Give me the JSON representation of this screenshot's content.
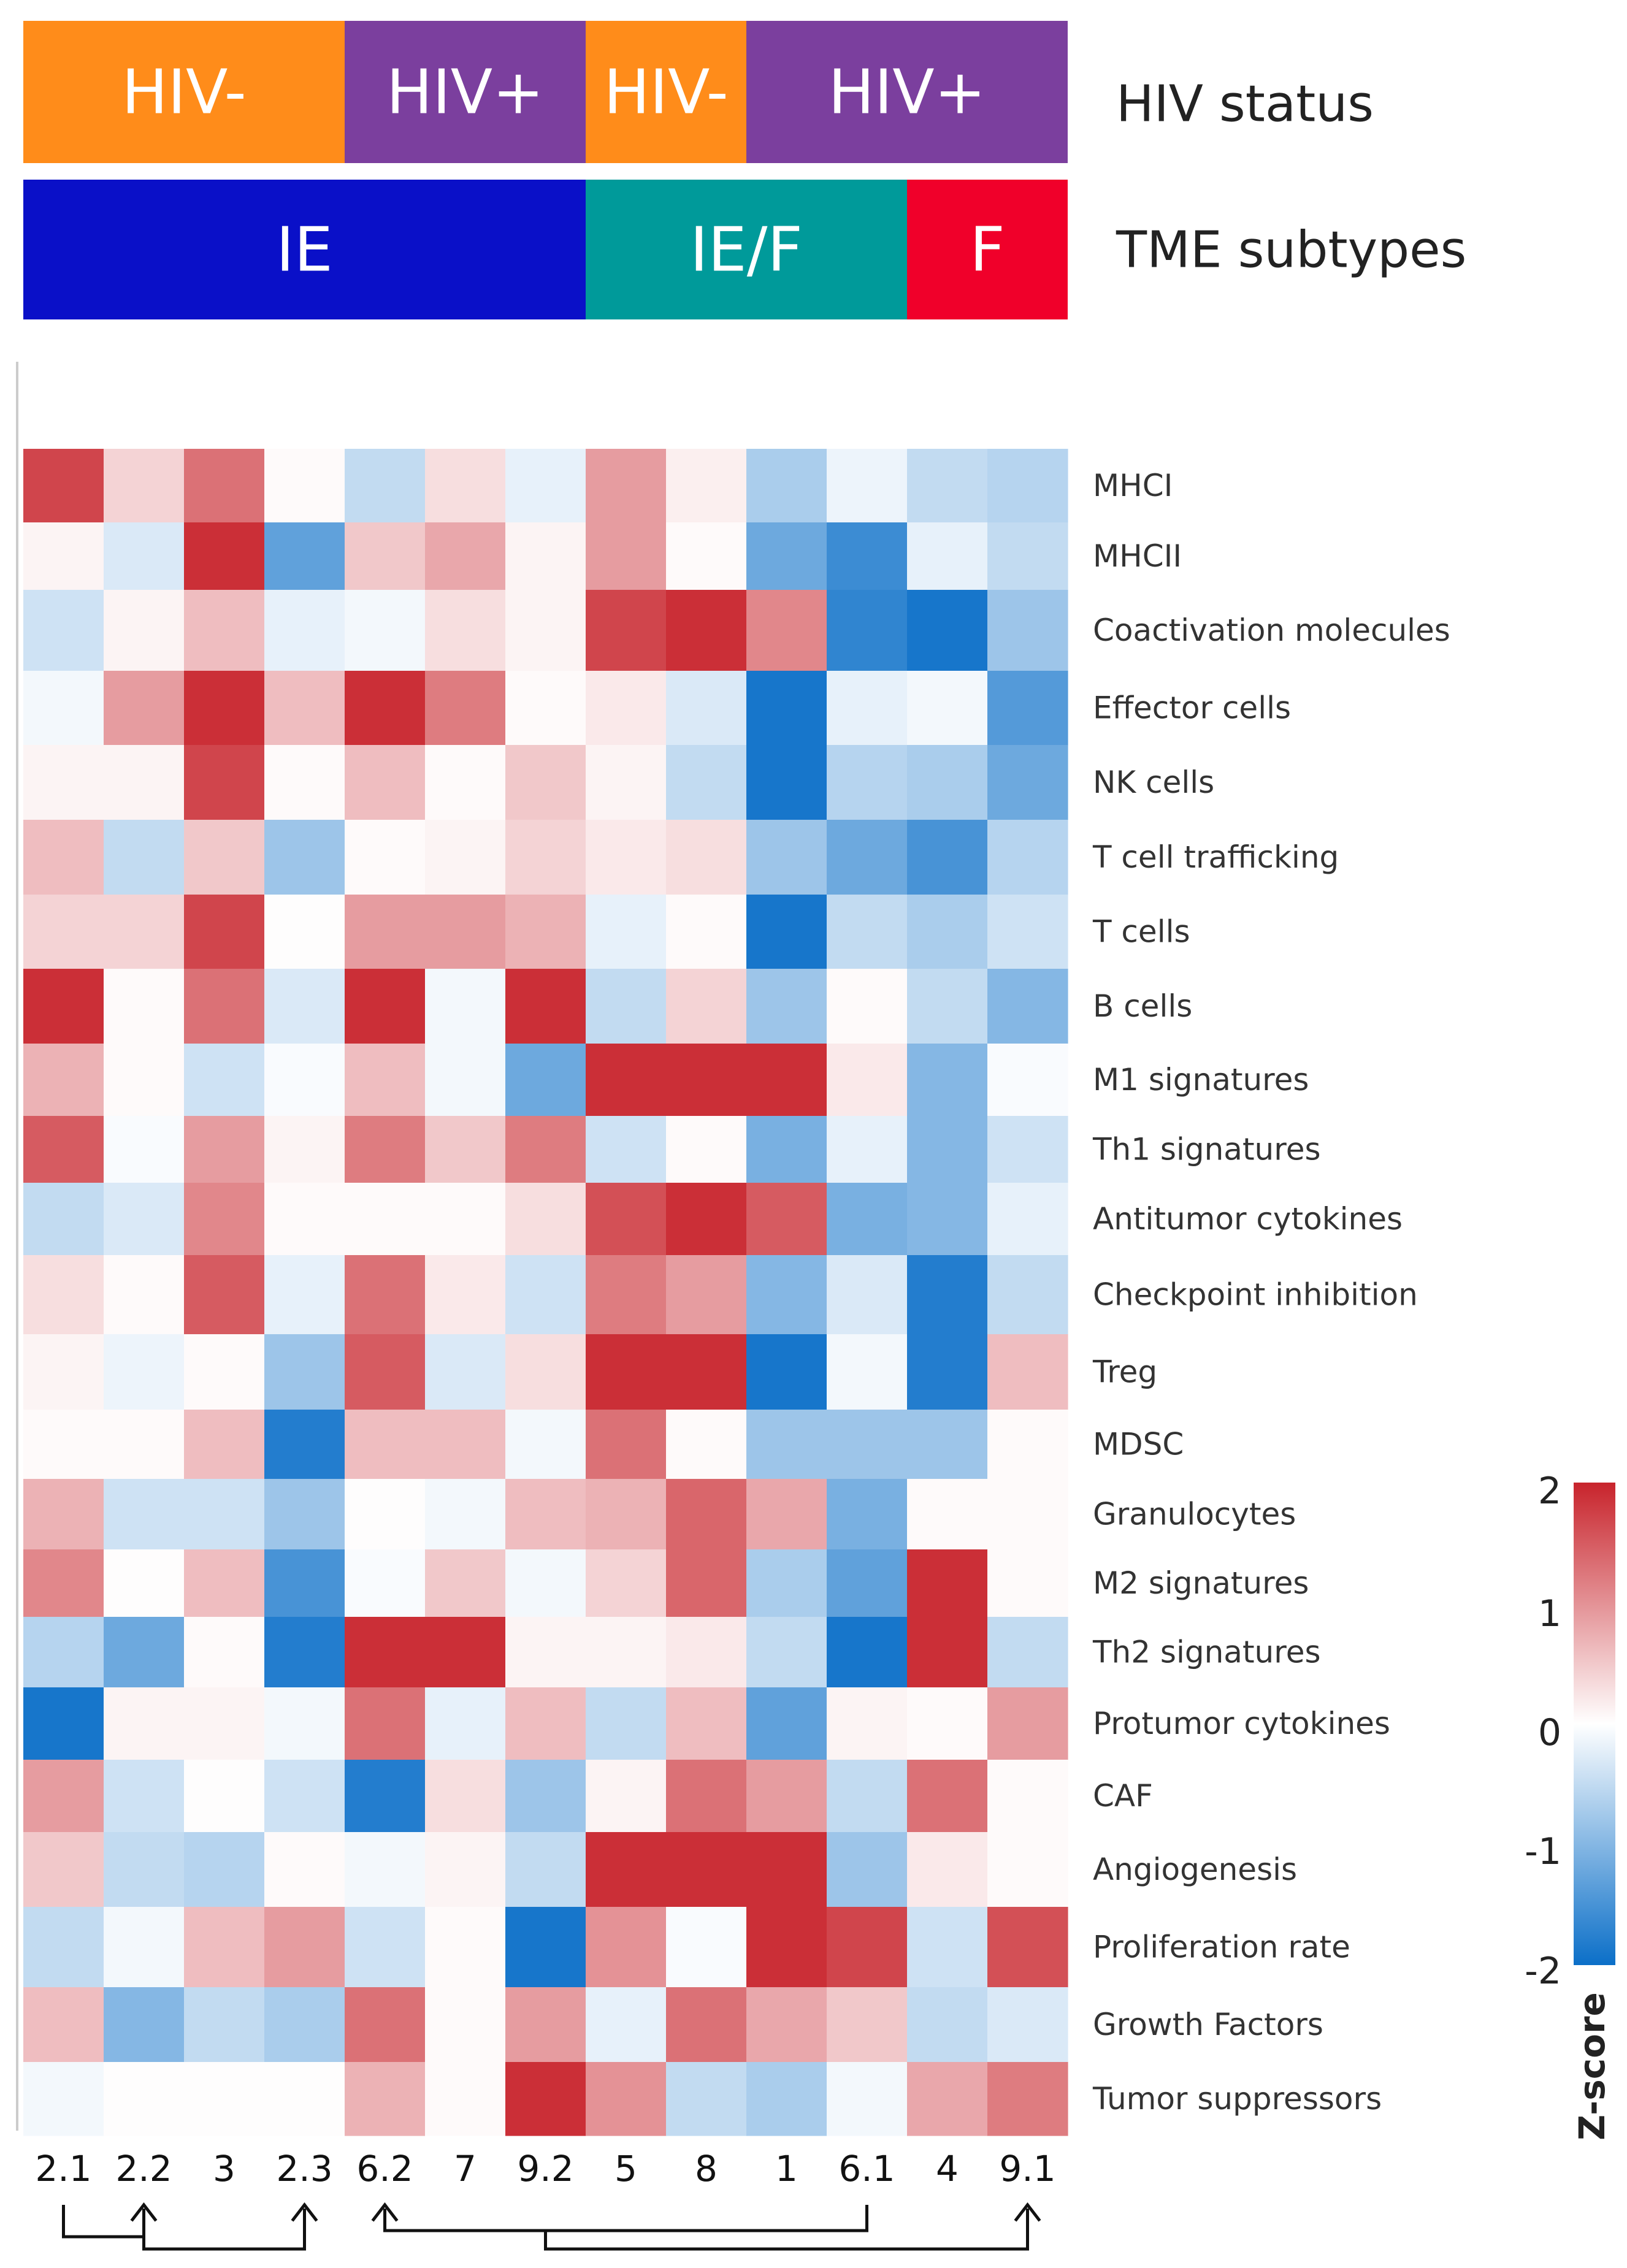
{
  "chart_data": {
    "type": "heatmap",
    "annotation_bars": [
      {
        "title": "HIV status",
        "segments": [
          {
            "label": "HIV-",
            "span": [
              0,
              4
            ],
            "color": "#FF8C1A"
          },
          {
            "label": "HIV+",
            "span": [
              4,
              7
            ],
            "color": "#7B3F9E"
          },
          {
            "label": "HIV-",
            "span": [
              7,
              9
            ],
            "color": "#FF8C1A"
          },
          {
            "label": "HIV+",
            "span": [
              9,
              13
            ],
            "color": "#7B3F9E"
          }
        ]
      },
      {
        "title": "TME subtypes",
        "segments": [
          {
            "label": "IE",
            "span": [
              0,
              7
            ],
            "color": "#0A10C8"
          },
          {
            "label": "IE/F",
            "span": [
              7,
              11
            ],
            "color": "#009A9A"
          },
          {
            "label": "F",
            "span": [
              11,
              13
            ],
            "color": "#F0002A"
          }
        ]
      }
    ],
    "columns": [
      "2.1",
      "2.2",
      "3",
      "2.3",
      "6.2",
      "7",
      "9.2",
      "5",
      "8",
      "1",
      "6.1",
      "4",
      "9.1"
    ],
    "rows": [
      "MHCI",
      "MHCII",
      "Coactivation molecules",
      "Effector cells",
      "NK cells",
      "T cell trafficking",
      "T cells",
      "B cells",
      "M1 signatures",
      "Th1 signatures",
      "Antitumor cytokines",
      "Checkpoint inhibition",
      "Treg",
      "MDSC",
      "Granulocytes",
      "M2 signatures",
      "Th2 signatures",
      "Protumor cytokines",
      "CAF",
      "Angiogenesis",
      "Proliferation rate",
      "Growth Factors",
      "Tumor suppressors"
    ],
    "values": [
      [
        1.7,
        0.4,
        1.3,
        0.05,
        -0.5,
        0.3,
        -0.2,
        0.9,
        0.15,
        -0.7,
        -0.15,
        -0.5,
        -0.6
      ],
      [
        0.1,
        -0.3,
        1.9,
        -1.3,
        0.5,
        0.8,
        0.1,
        0.9,
        0.05,
        -1.2,
        -1.6,
        -0.2,
        -0.5
      ],
      [
        -0.4,
        0.1,
        0.6,
        -0.2,
        -0.1,
        0.3,
        0.1,
        1.7,
        1.9,
        1.1,
        -1.7,
        -1.9,
        -0.8
      ],
      [
        -0.1,
        0.9,
        1.9,
        0.6,
        1.9,
        1.2,
        0.05,
        0.2,
        -0.3,
        -1.9,
        -0.2,
        -0.1,
        -1.4
      ],
      [
        0.1,
        0.1,
        1.7,
        0.05,
        0.6,
        0.05,
        0.5,
        0.1,
        -0.5,
        -1.9,
        -0.6,
        -0.7,
        -1.2
      ],
      [
        0.6,
        -0.5,
        0.5,
        -0.8,
        0.05,
        0.1,
        0.4,
        0.2,
        0.3,
        -0.8,
        -1.2,
        -1.5,
        -0.6
      ],
      [
        0.4,
        0.4,
        1.7,
        0.02,
        0.9,
        0.9,
        0.7,
        -0.2,
        0.05,
        -1.9,
        -0.5,
        -0.7,
        -0.4
      ],
      [
        1.9,
        0.05,
        1.3,
        -0.3,
        1.9,
        -0.1,
        1.9,
        -0.5,
        0.4,
        -0.8,
        0.05,
        -0.5,
        -1.0
      ],
      [
        0.7,
        0.05,
        -0.4,
        -0.05,
        0.6,
        -0.1,
        -1.2,
        1.9,
        1.9,
        1.9,
        0.2,
        -1.0,
        -0.05
      ],
      [
        1.5,
        -0.05,
        0.9,
        0.1,
        1.2,
        0.5,
        1.2,
        -0.4,
        0.05,
        -1.1,
        -0.2,
        -1.0,
        -0.4
      ],
      [
        -0.5,
        -0.3,
        1.1,
        0.05,
        0.05,
        0.05,
        0.3,
        1.6,
        1.9,
        1.5,
        -1.1,
        -1.0,
        -0.2
      ],
      [
        0.3,
        0.05,
        1.5,
        -0.2,
        1.3,
        0.2,
        -0.4,
        1.2,
        0.9,
        -1.0,
        -0.3,
        -1.8,
        -0.5
      ],
      [
        0.1,
        -0.15,
        0.05,
        -0.8,
        1.5,
        -0.3,
        0.3,
        1.9,
        1.9,
        -1.9,
        -0.1,
        -1.8,
        0.6
      ],
      [
        0.05,
        0.05,
        0.6,
        -1.8,
        0.6,
        0.6,
        -0.1,
        1.3,
        0.05,
        -0.8,
        -0.8,
        -0.8,
        0.05
      ],
      [
        0.7,
        -0.4,
        -0.4,
        -0.8,
        0.02,
        -0.1,
        0.6,
        0.7,
        1.4,
        0.8,
        -1.1,
        0.05,
        0.05
      ],
      [
        1.1,
        0.02,
        0.6,
        -1.5,
        -0.05,
        0.5,
        -0.1,
        0.4,
        1.4,
        -0.7,
        -1.3,
        1.9,
        0.05
      ],
      [
        -0.6,
        -1.2,
        0.05,
        -1.8,
        1.9,
        1.9,
        0.1,
        0.1,
        0.2,
        -0.5,
        -1.9,
        1.9,
        -0.5
      ],
      [
        -1.9,
        0.1,
        0.1,
        -0.1,
        1.3,
        -0.2,
        0.6,
        -0.5,
        0.6,
        -1.3,
        0.1,
        0.05,
        0.9
      ],
      [
        0.9,
        -0.4,
        0.02,
        -0.4,
        -1.8,
        0.3,
        -0.8,
        0.1,
        1.3,
        0.9,
        -0.5,
        1.3,
        0.05
      ],
      [
        0.5,
        -0.5,
        -0.6,
        0.05,
        -0.1,
        0.1,
        -0.5,
        1.9,
        1.9,
        1.9,
        -0.8,
        0.2,
        0.05
      ],
      [
        -0.5,
        -0.1,
        0.6,
        0.9,
        -0.4,
        0.05,
        -1.9,
        1.0,
        -0.05,
        1.9,
        1.7,
        -0.4,
        1.6
      ],
      [
        0.6,
        -1.0,
        -0.5,
        -0.7,
        1.3,
        0.05,
        0.9,
        -0.2,
        1.3,
        0.8,
        0.5,
        -0.5,
        -0.3
      ],
      [
        -0.1,
        0.02,
        0.02,
        0.02,
        0.7,
        0.05,
        1.9,
        1.0,
        -0.5,
        -0.7,
        -0.1,
        0.8,
        1.2
      ]
    ],
    "color_scale": {
      "min": -2,
      "max": 2,
      "low": "#0B6FC8",
      "mid": "#FFFFFF",
      "high": "#C8242C"
    },
    "colorbar": {
      "title": "Z-score",
      "ticks": [
        "2",
        "1",
        "0",
        "-1",
        "-2"
      ],
      "tick_values": [
        2,
        1,
        0,
        -1,
        -2
      ]
    },
    "connectors": [
      {
        "from": "2.1",
        "to": [
          "2.2",
          "2.3"
        ]
      },
      {
        "from": "6.1",
        "to": "6.2"
      },
      {
        "from": "9.2",
        "to": "9.1"
      }
    ]
  }
}
